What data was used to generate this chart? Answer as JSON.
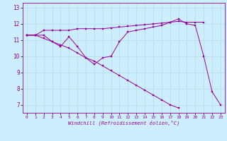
{
  "xlabel": "Windchill (Refroidissement éolien,°C)",
  "background_color": "#cceeff",
  "line_color": "#990099",
  "grid_color": "#aaddee",
  "ylim": [
    6.5,
    13.3
  ],
  "xlim": [
    -0.5,
    23.5
  ],
  "yticks": [
    7,
    8,
    9,
    10,
    11,
    12,
    13
  ],
  "xticks": [
    0,
    1,
    2,
    3,
    4,
    5,
    6,
    7,
    8,
    9,
    10,
    11,
    12,
    13,
    14,
    15,
    16,
    17,
    18,
    19,
    20,
    21,
    22,
    23
  ],
  "series1_x": [
    0,
    1,
    2,
    3,
    4,
    5,
    6,
    7,
    8,
    9,
    10,
    11,
    12,
    13,
    14,
    15,
    16,
    17,
    18,
    19,
    20,
    21,
    22,
    23
  ],
  "series1_y": [
    11.3,
    11.3,
    11.3,
    10.9,
    10.6,
    11.2,
    10.6,
    9.9,
    9.5,
    9.9,
    10.0,
    10.9,
    11.5,
    11.6,
    11.7,
    11.8,
    11.9,
    12.1,
    12.3,
    12.0,
    11.9,
    10.0,
    7.8,
    7.0
  ],
  "series2_x": [
    0,
    1,
    2,
    3,
    4,
    5,
    6,
    7,
    8,
    9,
    10,
    11,
    12,
    13,
    14,
    15,
    16,
    17,
    18,
    19,
    20,
    21
  ],
  "series2_y": [
    11.3,
    11.3,
    11.6,
    11.6,
    11.6,
    11.6,
    11.7,
    11.7,
    11.7,
    11.7,
    11.75,
    11.8,
    11.85,
    11.9,
    11.95,
    12.0,
    12.05,
    12.1,
    12.15,
    12.1,
    12.1,
    12.1
  ],
  "series3_x": [
    0,
    1,
    2,
    3,
    4,
    5,
    6,
    7,
    8,
    9,
    10,
    11,
    12,
    13,
    14,
    15,
    16,
    17,
    18,
    19,
    20,
    21,
    22,
    23
  ],
  "series3_y": [
    11.3,
    11.3,
    11.1,
    10.9,
    10.7,
    10.5,
    10.2,
    9.9,
    9.7,
    9.4,
    9.1,
    8.8,
    8.5,
    8.2,
    7.9,
    7.6,
    7.3,
    7.0,
    6.8,
    null,
    null,
    null,
    null,
    null
  ]
}
